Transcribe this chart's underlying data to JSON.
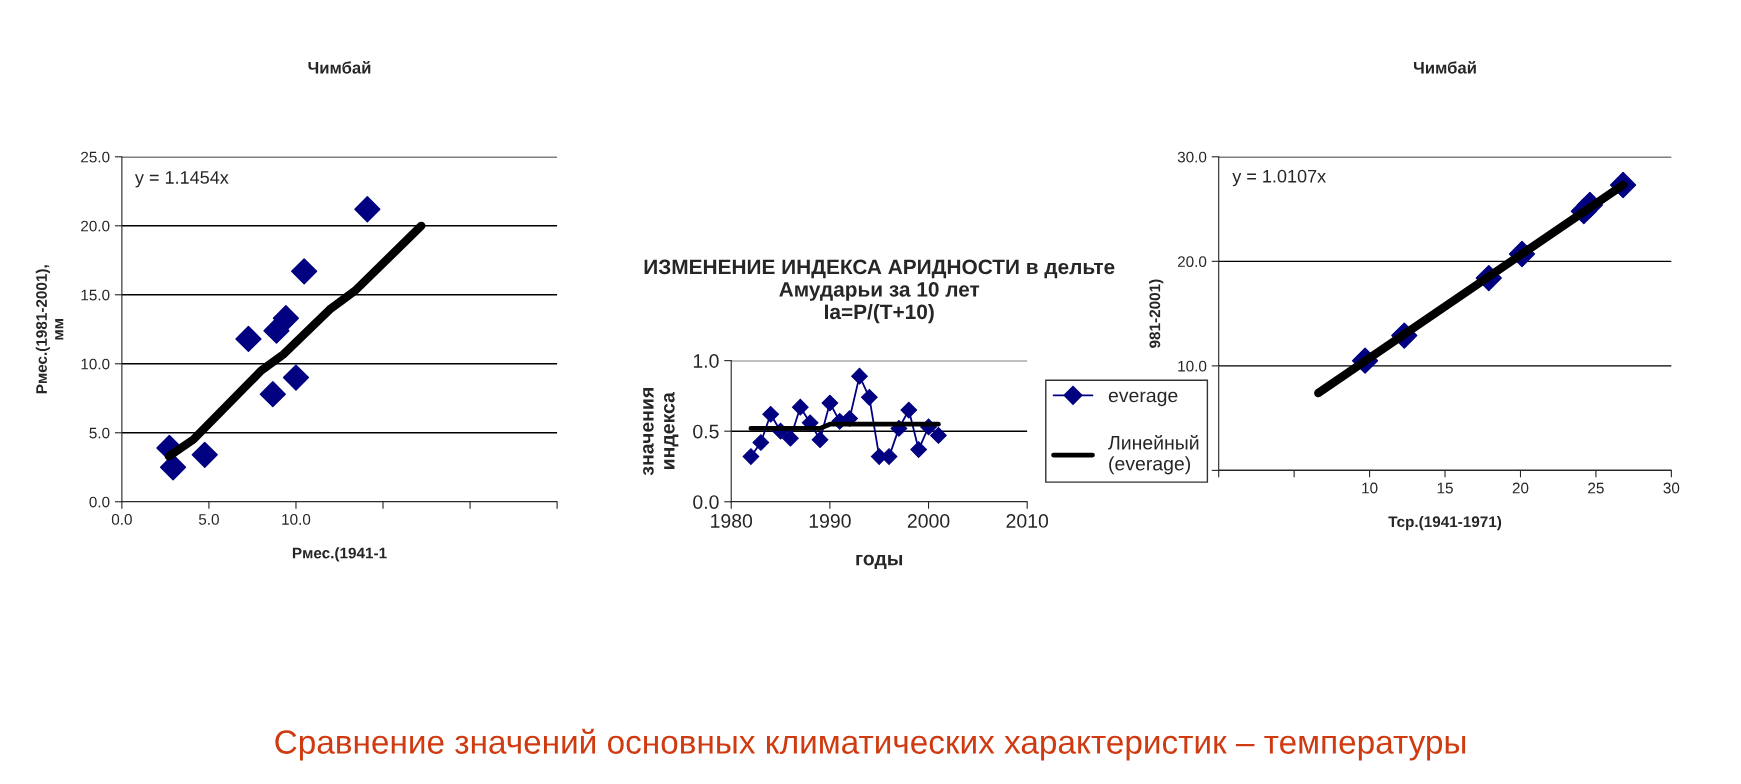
{
  "chart_data": [
    {
      "type": "scatter",
      "title": "Чимбай",
      "xlabel": "Рмес.(1941-1",
      "ylabel": "Рмес.(1981-2001),\nмм",
      "xlim": [
        0,
        25
      ],
      "xticks": [
        {
          "value": 0,
          "label": "0.0"
        },
        {
          "value": 5,
          "label": "5.0"
        },
        {
          "value": 10,
          "label": "10.0"
        },
        {
          "value": 15,
          "label": null
        },
        {
          "value": 20,
          "label": null
        },
        {
          "value": 25,
          "label": null
        }
      ],
      "ylim": [
        0,
        25
      ],
      "yticks": [
        {
          "value": 0,
          "label": "0.0"
        },
        {
          "value": 5,
          "label": "5.0"
        },
        {
          "value": 10,
          "label": "10.0"
        },
        {
          "value": 15,
          "label": "15.0"
        },
        {
          "value": 20,
          "label": "20.0"
        },
        {
          "value": 25,
          "label": "25.0"
        }
      ],
      "grid": "y",
      "legend": false,
      "annotations": [
        "y = 1.1454x"
      ],
      "series": [
        {
          "type": "scatter",
          "marker": "diamond",
          "color": "#000080",
          "x": [
            2.73,
            2.94,
            4.76,
            7.27,
            8.67,
            8.88,
            9.42,
            10.0,
            10.47,
            14.1
          ],
          "values": [
            3.9,
            2.5,
            3.4,
            11.8,
            7.8,
            12.4,
            13.3,
            9.0,
            16.7,
            21.2
          ]
        },
        {
          "type": "line",
          "marker": "none",
          "line_style": "solid",
          "color": "#000000",
          "x": [
            2.7,
            4.1,
            8.0,
            9.3,
            12.0,
            13.4,
            17.2
          ],
          "values": [
            3.3,
            4.5,
            9.5,
            10.7,
            14.0,
            15.3,
            20.0
          ]
        }
      ]
    },
    {
      "type": "scatter",
      "title": "Чимбай",
      "xlabel": "Тср.(1941-1971)",
      "ylabel": "981-2001)",
      "xlim": [
        0,
        30
      ],
      "xticks": [
        {
          "value": 0,
          "label": null
        },
        {
          "value": 5,
          "label": null
        },
        10,
        15,
        20,
        25,
        30
      ],
      "ylim": [
        0,
        30
      ],
      "yticks": [
        {
          "value": 0,
          "label": null
        },
        {
          "value": 10,
          "label": "10.0"
        },
        {
          "value": 20,
          "label": "20.0"
        },
        {
          "value": 30,
          "label": "30.0"
        }
      ],
      "grid": "y",
      "legend": false,
      "annotations": [
        "y = 1.0107x"
      ],
      "series": [
        {
          "type": "scatter",
          "marker": "diamond",
          "color": "#000080",
          "x": [
            9.7,
            12.3,
            17.9,
            20.1,
            24.2,
            24.6,
            26.8
          ],
          "values": [
            10.5,
            12.9,
            18.4,
            20.7,
            24.8,
            25.4,
            27.3
          ]
        },
        {
          "type": "line",
          "marker": "none",
          "line_style": "solid",
          "color": "#000000",
          "x": [
            6.6,
            26.8
          ],
          "values": [
            7.4,
            27.3
          ]
        }
      ]
    },
    {
      "type": "line",
      "title": "ИЗМЕНЕНИЕ ИНДЕКСА АРИДНОСТИ в дельте\nАмударьи за 10 лет\nIa=P/(T+10)",
      "xlabel": "годы",
      "ylabel": "значения\nиндекса",
      "xlim": [
        1980,
        2010
      ],
      "xticks": [
        1980,
        1990,
        2000,
        2010
      ],
      "ylim": [
        0,
        1
      ],
      "yticks": [
        {
          "value": 0,
          "label": "0.0"
        },
        {
          "value": 0.5,
          "label": "0.5"
        },
        {
          "value": 1,
          "label": "1.0"
        }
      ],
      "grid": "y",
      "legend": "right",
      "annotations": [
        "Сравнение значений основных климатических характеристик – температуры"
      ],
      "series": [
        {
          "name": "everage",
          "type": "line",
          "marker": "diamond",
          "line_style": "solid",
          "color": "#000080",
          "x": [
            1982,
            1983,
            1984,
            1985,
            1986,
            1987,
            1988,
            1989,
            1990,
            1991,
            1992,
            1993,
            1994,
            1995,
            1996,
            1997,
            1998,
            1999,
            2000,
            2001
          ],
          "values": [
            0.32,
            0.42,
            0.62,
            0.5,
            0.45,
            0.67,
            0.56,
            0.44,
            0.7,
            0.57,
            0.59,
            0.89,
            0.74,
            0.32,
            0.32,
            0.52,
            0.65,
            0.37,
            0.53,
            0.47
          ]
        },
        {
          "name": "Линейный\n(everage)",
          "type": "line",
          "marker": "none",
          "line_style": "solid",
          "color": "#000000",
          "x": [
            1982,
            1989,
            1990,
            2001
          ],
          "values": [
            0.52,
            0.52,
            0.55,
            0.55
          ]
        }
      ]
    }
  ]
}
